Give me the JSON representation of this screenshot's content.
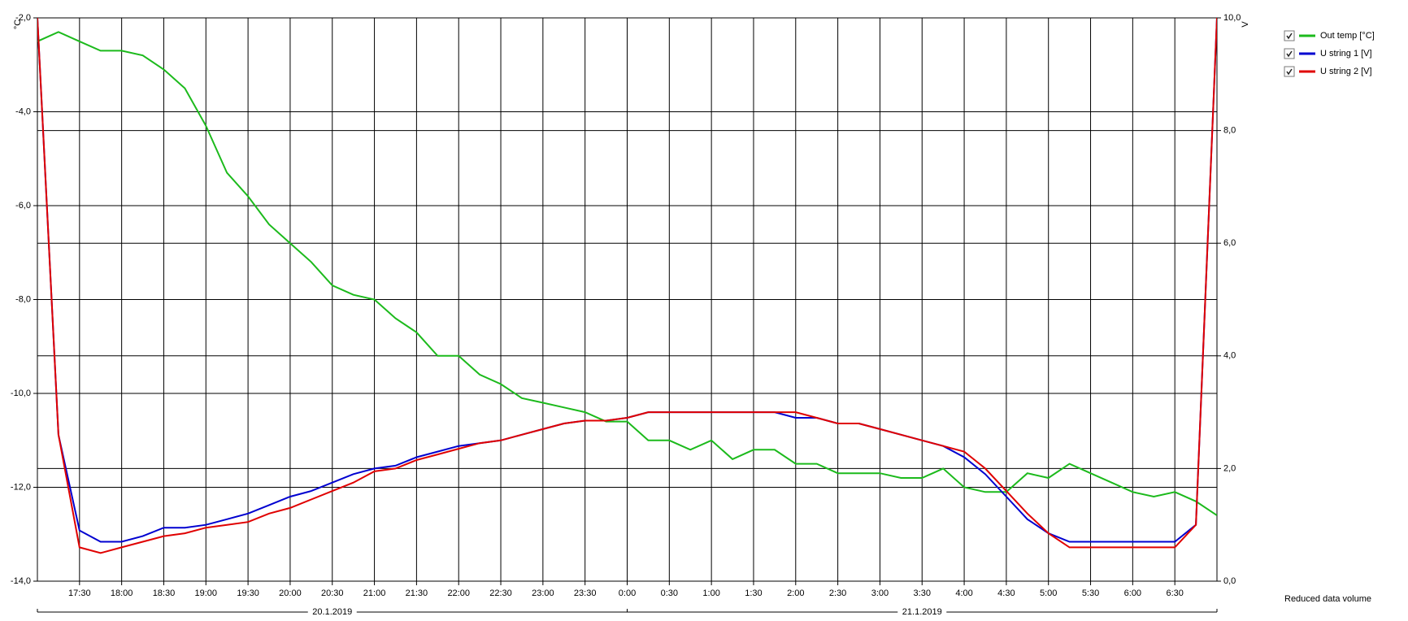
{
  "chart_data": {
    "type": "line",
    "x": [
      1020,
      1035,
      1050,
      1065,
      1080,
      1095,
      1110,
      1125,
      1140,
      1155,
      1170,
      1185,
      1200,
      1215,
      1230,
      1245,
      1260,
      1275,
      1290,
      1305,
      1320,
      1335,
      1350,
      1365,
      1380,
      1395,
      1410,
      1425,
      1440,
      1455,
      1470,
      1485,
      1500,
      1515,
      1530,
      1545,
      1560,
      1575,
      1590,
      1605,
      1620,
      1635,
      1650,
      1665,
      1680,
      1695,
      1710,
      1725,
      1740,
      1755,
      1770,
      1785,
      1800,
      1815,
      1830,
      1845,
      1860
    ],
    "xlim": [
      1020,
      1860
    ],
    "xticks": [
      {
        "value": 1050,
        "label": "17:30"
      },
      {
        "value": 1080,
        "label": "18:00"
      },
      {
        "value": 1110,
        "label": "18:30"
      },
      {
        "value": 1140,
        "label": "19:00"
      },
      {
        "value": 1170,
        "label": "19:30"
      },
      {
        "value": 1200,
        "label": "20:00"
      },
      {
        "value": 1230,
        "label": "20:30"
      },
      {
        "value": 1260,
        "label": "21:00"
      },
      {
        "value": 1290,
        "label": "21:30"
      },
      {
        "value": 1320,
        "label": "22:00"
      },
      {
        "value": 1350,
        "label": "22:30"
      },
      {
        "value": 1380,
        "label": "23:00"
      },
      {
        "value": 1410,
        "label": "23:30"
      },
      {
        "value": 1440,
        "label": "0:00"
      },
      {
        "value": 1470,
        "label": "0:30"
      },
      {
        "value": 1500,
        "label": "1:00"
      },
      {
        "value": 1530,
        "label": "1:30"
      },
      {
        "value": 1560,
        "label": "2:00"
      },
      {
        "value": 1590,
        "label": "2:30"
      },
      {
        "value": 1620,
        "label": "3:00"
      },
      {
        "value": 1650,
        "label": "3:30"
      },
      {
        "value": 1680,
        "label": "4:00"
      },
      {
        "value": 1710,
        "label": "4:30"
      },
      {
        "value": 1740,
        "label": "5:00"
      },
      {
        "value": 1770,
        "label": "5:30"
      },
      {
        "value": 1800,
        "label": "6:00"
      },
      {
        "value": 1830,
        "label": "6:30"
      }
    ],
    "dates": [
      {
        "label": "20.1.2019",
        "start": 1020,
        "end": 1440
      },
      {
        "label": "21.1.2019",
        "start": 1440,
        "end": 1860
      }
    ],
    "ylabel": "°C",
    "ylim": [
      -14,
      -2
    ],
    "yticks": [
      {
        "value": -14,
        "label": "-14,0"
      },
      {
        "value": -12,
        "label": "-12,0"
      },
      {
        "value": -10,
        "label": "-10,0"
      },
      {
        "value": -8,
        "label": "-8,0"
      },
      {
        "value": -6,
        "label": "-6,0"
      },
      {
        "value": -4,
        "label": "-4,0"
      },
      {
        "value": -2,
        "label": "-2,0"
      }
    ],
    "y2label": "V",
    "y2lim": [
      0,
      10
    ],
    "y2ticks": [
      {
        "value": 0,
        "label": "0,0"
      },
      {
        "value": 2,
        "label": "2,0"
      },
      {
        "value": 4,
        "label": "4,0"
      },
      {
        "value": 6,
        "label": "6,0"
      },
      {
        "value": 8,
        "label": "8,0"
      },
      {
        "value": 10,
        "label": "10,0"
      }
    ],
    "grid": true,
    "series": [
      {
        "name": "Out temp [°C]",
        "color": "#1cba1c",
        "values": [
          -2.5,
          -2.3,
          -2.5,
          -2.7,
          -2.7,
          -2.8,
          -3.1,
          -3.5,
          -4.3,
          -5.3,
          -5.8,
          -6.4,
          -6.8,
          -7.2,
          -7.7,
          -7.9,
          -8.0,
          -8.4,
          -8.7,
          -9.2,
          -9.2,
          -9.6,
          -9.8,
          -10.1,
          -10.2,
          -10.3,
          -10.4,
          -10.6,
          -10.6,
          -11.0,
          -11.0,
          -11.2,
          -11.0,
          -11.4,
          -11.2,
          -11.2,
          -11.5,
          -11.5,
          -11.7,
          -11.7,
          -11.7,
          -11.8,
          -11.8,
          -11.6,
          -12.0,
          -12.1,
          -12.1,
          -11.7,
          -11.8,
          -11.5,
          -11.7,
          -11.9,
          -12.1,
          -12.2,
          -12.1,
          -12.3,
          -12.6
        ]
      },
      {
        "name": "U string 1 [V]",
        "color": "#0000d0",
        "axis": "y2",
        "values": [
          10,
          2.6,
          0.9,
          0.7,
          0.7,
          0.8,
          0.95,
          0.95,
          1.0,
          1.1,
          1.2,
          1.35,
          1.5,
          1.6,
          1.75,
          1.9,
          2.0,
          2.05,
          2.2,
          2.3,
          2.4,
          2.45,
          2.5,
          2.6,
          2.7,
          2.8,
          2.85,
          2.85,
          2.9,
          3.0,
          3.0,
          3.0,
          3.0,
          3.0,
          3.0,
          3.0,
          2.9,
          2.9,
          2.8,
          2.8,
          2.7,
          2.6,
          2.5,
          2.4,
          2.2,
          1.9,
          1.5,
          1.1,
          0.85,
          0.7,
          0.7,
          0.7,
          0.7,
          0.7,
          0.7,
          1.0,
          10
        ]
      },
      {
        "name": "U string 2 [V]",
        "color": "#e00000",
        "axis": "y2",
        "values": [
          10,
          2.6,
          0.6,
          0.5,
          0.6,
          0.7,
          0.8,
          0.85,
          0.95,
          1.0,
          1.05,
          1.2,
          1.3,
          1.45,
          1.6,
          1.75,
          1.95,
          2.0,
          2.15,
          2.25,
          2.35,
          2.45,
          2.5,
          2.6,
          2.7,
          2.8,
          2.85,
          2.85,
          2.9,
          3.0,
          3.0,
          3.0,
          3.0,
          3.0,
          3.0,
          3.0,
          3.0,
          2.9,
          2.8,
          2.8,
          2.7,
          2.6,
          2.5,
          2.4,
          2.3,
          2.0,
          1.6,
          1.2,
          0.85,
          0.6,
          0.6,
          0.6,
          0.6,
          0.6,
          0.6,
          1.0,
          10
        ]
      }
    ],
    "note": "Reduced data volume"
  }
}
